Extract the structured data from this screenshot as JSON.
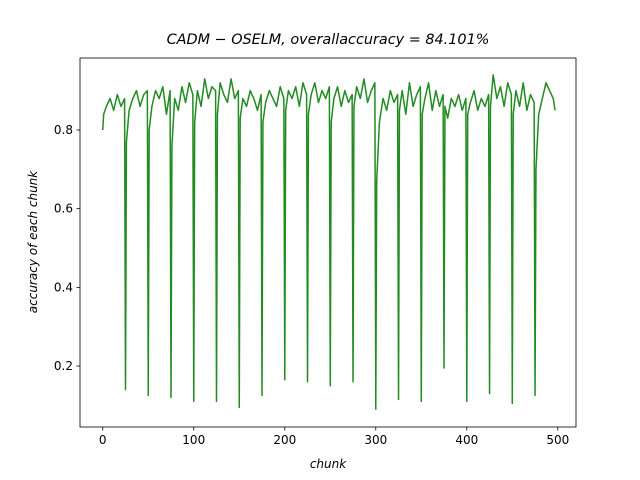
{
  "chart_data": {
    "type": "line",
    "title": "CADM − OSELM,  overallaccuracy  =  84.101%",
    "x_label": "chunk",
    "y_label": "accuracy of each chunk",
    "color": "#228b22",
    "x": [
      0,
      1,
      4,
      8,
      12,
      16,
      20,
      24,
      25,
      26,
      29,
      33,
      37,
      41,
      45,
      49,
      50,
      51,
      54,
      58,
      62,
      66,
      70,
      74,
      75,
      76,
      79,
      83,
      87,
      91,
      95,
      99,
      100,
      101,
      104,
      108,
      112,
      116,
      120,
      124,
      125,
      126,
      129,
      133,
      137,
      141,
      145,
      149,
      150,
      151,
      154,
      158,
      162,
      166,
      170,
      174,
      175,
      176,
      179,
      183,
      187,
      191,
      195,
      199,
      200,
      201,
      204,
      208,
      212,
      216,
      220,
      224,
      225,
      226,
      229,
      233,
      237,
      241,
      245,
      249,
      250,
      251,
      254,
      258,
      262,
      266,
      270,
      274,
      275,
      276,
      279,
      283,
      287,
      291,
      295,
      299,
      300,
      301,
      304,
      308,
      312,
      316,
      320,
      324,
      325,
      326,
      329,
      333,
      337,
      341,
      345,
      349,
      350,
      351,
      354,
      358,
      362,
      366,
      370,
      374,
      375,
      376,
      379,
      383,
      387,
      391,
      395,
      399,
      400,
      401,
      404,
      408,
      412,
      416,
      420,
      424,
      425,
      426,
      429,
      433,
      437,
      441,
      445,
      449,
      450,
      451,
      454,
      458,
      462,
      466,
      470,
      474,
      475,
      476,
      479,
      483,
      487,
      491,
      495,
      497
    ],
    "values": [
      0.8,
      0.84,
      0.86,
      0.88,
      0.85,
      0.89,
      0.86,
      0.88,
      0.14,
      0.77,
      0.85,
      0.88,
      0.9,
      0.86,
      0.89,
      0.9,
      0.125,
      0.8,
      0.86,
      0.9,
      0.88,
      0.91,
      0.84,
      0.9,
      0.12,
      0.76,
      0.88,
      0.85,
      0.91,
      0.87,
      0.92,
      0.89,
      0.11,
      0.82,
      0.9,
      0.86,
      0.93,
      0.88,
      0.91,
      0.9,
      0.11,
      0.84,
      0.92,
      0.89,
      0.87,
      0.93,
      0.88,
      0.9,
      0.095,
      0.83,
      0.88,
      0.86,
      0.9,
      0.88,
      0.85,
      0.89,
      0.125,
      0.82,
      0.87,
      0.9,
      0.88,
      0.86,
      0.91,
      0.88,
      0.165,
      0.85,
      0.9,
      0.88,
      0.91,
      0.86,
      0.92,
      0.89,
      0.16,
      0.84,
      0.89,
      0.92,
      0.87,
      0.9,
      0.88,
      0.91,
      0.15,
      0.82,
      0.88,
      0.91,
      0.86,
      0.9,
      0.87,
      0.89,
      0.16,
      0.86,
      0.91,
      0.88,
      0.93,
      0.87,
      0.9,
      0.92,
      0.09,
      0.67,
      0.82,
      0.88,
      0.85,
      0.9,
      0.87,
      0.89,
      0.115,
      0.85,
      0.9,
      0.84,
      0.92,
      0.86,
      0.89,
      0.91,
      0.11,
      0.84,
      0.88,
      0.92,
      0.85,
      0.9,
      0.86,
      0.89,
      0.195,
      0.86,
      0.83,
      0.88,
      0.86,
      0.89,
      0.85,
      0.88,
      0.11,
      0.84,
      0.87,
      0.9,
      0.85,
      0.88,
      0.86,
      0.89,
      0.13,
      0.86,
      0.94,
      0.88,
      0.91,
      0.86,
      0.92,
      0.89,
      0.105,
      0.84,
      0.9,
      0.86,
      0.92,
      0.85,
      0.89,
      0.87,
      0.125,
      0.7,
      0.84,
      0.88,
      0.92,
      0.9,
      0.88,
      0.85
    ],
    "xlim": [
      -25,
      520
    ],
    "ylim": [
      0.045,
      0.983
    ],
    "xticks": [
      0,
      100,
      200,
      300,
      400,
      500
    ],
    "yticks": [
      0.2,
      0.4,
      0.6,
      0.8
    ]
  }
}
